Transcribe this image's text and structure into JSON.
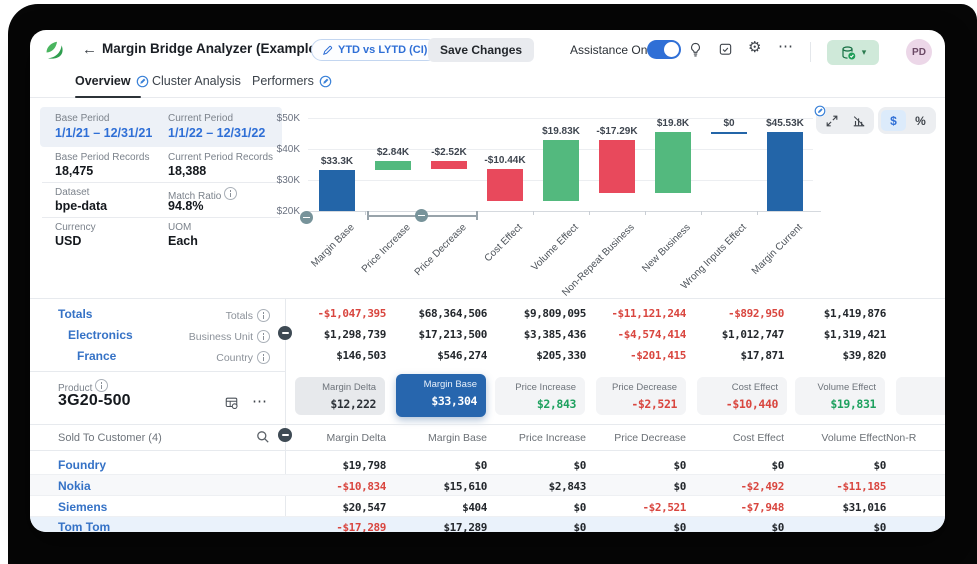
{
  "palette": {
    "accent_blue": "#2f6fd6",
    "link_blue": "#3572c6",
    "negative_red": "#d9463f",
    "positive_green": "#1ea15f",
    "selected_card_blue": "#2766ae"
  },
  "icons": {
    "back_arrow": "←",
    "gear": "⚙",
    "ellipsis": "⋯",
    "caret_down": "▾"
  },
  "header": {
    "title": "Margin Bridge Analyzer (Example)",
    "comparison_pill": "YTD vs LYTD (CI)",
    "save_button": "Save Changes",
    "assistance_label": "Assistance On",
    "avatar_initials": "PD"
  },
  "tabs": {
    "overview": "Overview",
    "cluster": "Cluster Analysis",
    "performers": "Performers"
  },
  "info": {
    "base_period_label": "Base Period",
    "base_period": "1/1/21 – 12/31/21",
    "current_period_label": "Current Period",
    "current_period": "1/1/22 – 12/31/22",
    "base_records_label": "Base Period Records",
    "base_records": "18,475",
    "current_records_label": "Current Period Records",
    "current_records": "18,388",
    "dataset_label": "Dataset",
    "dataset": "bpe-data",
    "match_ratio_label": "Match Ratio",
    "match_ratio": "94.8%",
    "currency_label": "Currency",
    "currency": "USD",
    "uom_label": "UOM",
    "uom": "Each"
  },
  "chart_toolbar": {
    "dollar": "$",
    "percent": "%"
  },
  "chart_data": {
    "type": "bar",
    "subtype": "waterfall",
    "title": "",
    "categories": [
      "Margin Base",
      "Price Increase",
      "Price Decrease",
      "Cost Effect",
      "Volume Effect",
      "Non-Repeat Business",
      "New Business",
      "Wrong Inputs Effect",
      "Margin Current"
    ],
    "values_k": [
      33.3,
      2.84,
      -2.52,
      -10.44,
      19.83,
      -17.29,
      19.8,
      0,
      45.53
    ],
    "bar_labels": [
      "$33.3K",
      "$2.84K",
      "-$2.52K",
      "-$10.44K",
      "$19.83K",
      "-$17.29K",
      "$19.8K",
      "$0",
      "$45.53K"
    ],
    "bar_types": [
      "total",
      "delta",
      "delta",
      "delta",
      "delta",
      "delta",
      "delta",
      "delta",
      "total"
    ],
    "y_axis": {
      "min_k": 20,
      "max_k": 50,
      "ticks_k": [
        50,
        40,
        30,
        20
      ],
      "tick_labels": [
        "$50K",
        "$40K",
        "$30K",
        "$20K"
      ]
    },
    "grid": true,
    "legend": false,
    "colors": {
      "total": "#2365a8",
      "positive": "#53b97e",
      "negative": "#e8495c"
    }
  },
  "hierarchy": {
    "rows": [
      {
        "name": "Totals",
        "type_label": "Totals",
        "values": [
          "-$1,047,395",
          "$68,364,506",
          "$9,809,095",
          "-$11,121,244",
          "-$892,950",
          "$1,419,876"
        ]
      },
      {
        "name": "Electronics",
        "type_label": "Business Unit",
        "values": [
          "$1,298,739",
          "$17,213,500",
          "$3,385,436",
          "-$4,574,414",
          "$1,012,747",
          "$1,319,421"
        ]
      },
      {
        "name": "France",
        "type_label": "Country",
        "values": [
          "$146,503",
          "$546,274",
          "$205,330",
          "-$201,415",
          "$17,871",
          "$39,820"
        ]
      }
    ]
  },
  "product": {
    "label": "Product",
    "name": "3G20-500"
  },
  "summary_cards": [
    {
      "label": "Margin Delta",
      "value": "$12,222"
    },
    {
      "label": "Margin Base",
      "value": "$33,304"
    },
    {
      "label": "Price Increase",
      "value": "$2,843"
    },
    {
      "label": "Price Decrease",
      "value": "-$2,521"
    },
    {
      "label": "Cost Effect",
      "value": "-$10,440"
    },
    {
      "label": "Volume Effect",
      "value": "$19,831"
    }
  ],
  "customer_table": {
    "group_label": "Sold To Customer (4)",
    "columns": [
      "Margin Delta",
      "Margin Base",
      "Price Increase",
      "Price Decrease",
      "Cost Effect",
      "Volume Effect",
      "Non-R"
    ],
    "rows": [
      {
        "name": "Foundry",
        "values": [
          "$19,798",
          "$0",
          "$0",
          "$0",
          "$0",
          "$0"
        ]
      },
      {
        "name": "Nokia",
        "values": [
          "-$10,834",
          "$15,610",
          "$2,843",
          "$0",
          "-$2,492",
          "-$11,185"
        ]
      },
      {
        "name": "Siemens",
        "values": [
          "$20,547",
          "$404",
          "$0",
          "-$2,521",
          "-$7,948",
          "$31,016"
        ]
      },
      {
        "name": "Tom Tom",
        "values": [
          "-$17,289",
          "$17,289",
          "$0",
          "$0",
          "$0",
          "$0"
        ]
      }
    ]
  }
}
